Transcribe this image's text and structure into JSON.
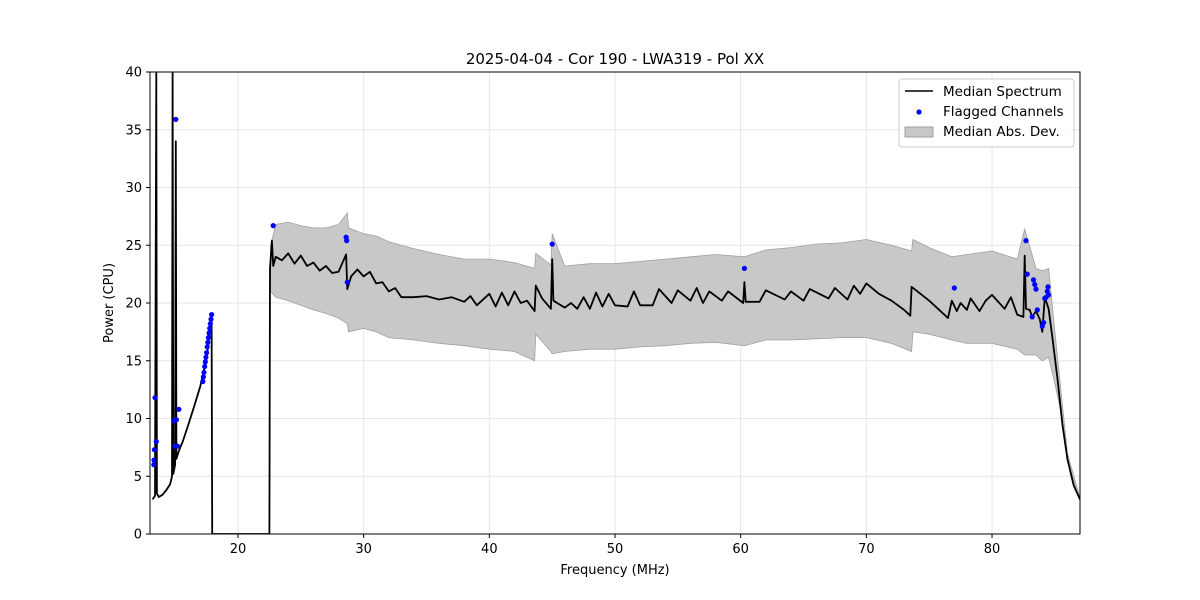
{
  "chart_data": {
    "type": "line",
    "title": "2025-04-04 - Cor 190 - LWA319 - Pol XX",
    "xlabel": "Frequency (MHz)",
    "ylabel": "Power (CPU)",
    "xlim": [
      13,
      87
    ],
    "ylim": [
      0,
      40
    ],
    "xticks": [
      20,
      30,
      40,
      50,
      60,
      70,
      80
    ],
    "yticks": [
      0,
      5,
      10,
      15,
      20,
      25,
      30,
      35,
      40
    ],
    "grid": true,
    "legend_position": "top-right",
    "colors": {
      "median": "#000000",
      "flagged": "#0000ff",
      "band": "#c8c8c8",
      "band_edge": "#a0a0a0"
    },
    "series": [
      {
        "name": "Median Spectrum",
        "kind": "line",
        "points": [
          [
            13.2,
            3.0
          ],
          [
            13.4,
            3.3
          ],
          [
            13.5,
            40.0
          ],
          [
            13.55,
            3.5
          ],
          [
            13.7,
            3.2
          ],
          [
            14.0,
            3.4
          ],
          [
            14.3,
            3.8
          ],
          [
            14.6,
            4.3
          ],
          [
            14.75,
            5.0
          ],
          [
            14.8,
            40.0
          ],
          [
            14.85,
            5.2
          ],
          [
            15.0,
            6.0
          ],
          [
            15.05,
            34.0
          ],
          [
            15.1,
            6.5
          ],
          [
            15.3,
            7.2
          ],
          [
            15.6,
            8.0
          ],
          [
            16.0,
            9.3
          ],
          [
            16.5,
            11.0
          ],
          [
            17.0,
            12.8
          ],
          [
            17.5,
            15.2
          ],
          [
            17.9,
            18.7
          ],
          [
            17.95,
            0.0
          ],
          [
            22.5,
            0.0
          ],
          [
            22.55,
            23.0
          ],
          [
            22.7,
            25.4
          ],
          [
            22.8,
            23.2
          ],
          [
            23.0,
            24.0
          ],
          [
            23.5,
            23.7
          ],
          [
            24.0,
            24.3
          ],
          [
            24.5,
            23.4
          ],
          [
            25.0,
            24.1
          ],
          [
            25.5,
            23.2
          ],
          [
            26.0,
            23.5
          ],
          [
            26.5,
            22.8
          ],
          [
            27.0,
            23.2
          ],
          [
            27.5,
            22.6
          ],
          [
            28.0,
            22.7
          ],
          [
            28.6,
            24.2
          ],
          [
            28.7,
            21.2
          ],
          [
            29.0,
            22.3
          ],
          [
            29.5,
            22.9
          ],
          [
            30.0,
            22.3
          ],
          [
            30.5,
            22.7
          ],
          [
            31.0,
            21.7
          ],
          [
            31.5,
            21.8
          ],
          [
            32.0,
            21.0
          ],
          [
            32.5,
            21.3
          ],
          [
            33.0,
            20.5
          ],
          [
            34.0,
            20.5
          ],
          [
            35.0,
            20.6
          ],
          [
            36.0,
            20.3
          ],
          [
            37.0,
            20.5
          ],
          [
            38.0,
            20.1
          ],
          [
            38.5,
            20.6
          ],
          [
            39.0,
            19.8
          ],
          [
            40.0,
            20.8
          ],
          [
            40.5,
            19.7
          ],
          [
            41.0,
            20.9
          ],
          [
            41.5,
            19.8
          ],
          [
            42.0,
            21.0
          ],
          [
            42.5,
            20.0
          ],
          [
            43.0,
            20.2
          ],
          [
            43.6,
            19.3
          ],
          [
            43.7,
            21.5
          ],
          [
            44.2,
            20.4
          ],
          [
            44.9,
            19.5
          ],
          [
            45.0,
            23.8
          ],
          [
            45.1,
            20.2
          ],
          [
            46.0,
            19.6
          ],
          [
            46.5,
            20.0
          ],
          [
            47.0,
            19.5
          ],
          [
            47.5,
            20.5
          ],
          [
            48.0,
            19.5
          ],
          [
            48.5,
            20.9
          ],
          [
            49.0,
            19.7
          ],
          [
            49.5,
            20.8
          ],
          [
            50.0,
            19.8
          ],
          [
            51.0,
            19.7
          ],
          [
            51.5,
            21.0
          ],
          [
            52.0,
            19.8
          ],
          [
            53.0,
            19.8
          ],
          [
            53.5,
            21.2
          ],
          [
            54.5,
            20.0
          ],
          [
            55.0,
            21.1
          ],
          [
            56.0,
            20.2
          ],
          [
            56.5,
            21.3
          ],
          [
            57.0,
            20.0
          ],
          [
            57.5,
            21.0
          ],
          [
            58.5,
            20.2
          ],
          [
            59.0,
            21.0
          ],
          [
            60.2,
            20.0
          ],
          [
            60.3,
            21.8
          ],
          [
            60.4,
            20.1
          ],
          [
            61.5,
            20.1
          ],
          [
            62.0,
            21.1
          ],
          [
            63.5,
            20.3
          ],
          [
            64.0,
            21.0
          ],
          [
            65.0,
            20.2
          ],
          [
            65.5,
            21.2
          ],
          [
            67.0,
            20.4
          ],
          [
            67.5,
            21.3
          ],
          [
            68.5,
            20.3
          ],
          [
            69.0,
            21.5
          ],
          [
            69.5,
            20.8
          ],
          [
            70.0,
            21.7
          ],
          [
            71.0,
            20.8
          ],
          [
            72.0,
            20.2
          ],
          [
            73.0,
            19.4
          ],
          [
            73.5,
            18.9
          ],
          [
            73.6,
            21.4
          ],
          [
            75.0,
            20.2
          ],
          [
            76.5,
            18.7
          ],
          [
            76.8,
            20.2
          ],
          [
            77.2,
            19.3
          ],
          [
            77.5,
            20.0
          ],
          [
            78.0,
            19.4
          ],
          [
            78.3,
            20.4
          ],
          [
            79.0,
            19.3
          ],
          [
            79.5,
            20.2
          ],
          [
            80.0,
            20.7
          ],
          [
            81.0,
            19.5
          ],
          [
            81.5,
            20.5
          ],
          [
            82.0,
            19.0
          ],
          [
            82.5,
            18.8
          ],
          [
            82.6,
            24.1
          ],
          [
            82.7,
            19.5
          ],
          [
            83.0,
            19.4
          ],
          [
            83.2,
            18.8
          ],
          [
            83.5,
            19.3
          ],
          [
            83.8,
            18.6
          ],
          [
            84.0,
            17.5
          ],
          [
            84.2,
            20.5
          ],
          [
            84.5,
            19.5
          ],
          [
            84.8,
            17.0
          ],
          [
            85.2,
            13.5
          ],
          [
            85.6,
            9.5
          ],
          [
            86.0,
            6.5
          ],
          [
            86.5,
            4.2
          ],
          [
            87.0,
            3.0
          ]
        ]
      },
      {
        "name": "Flagged Channels",
        "kind": "scatter",
        "points": [
          [
            13.3,
            6.0
          ],
          [
            13.32,
            6.4
          ],
          [
            13.35,
            7.3
          ],
          [
            13.4,
            11.8
          ],
          [
            13.5,
            8.0
          ],
          [
            14.9,
            9.8
          ],
          [
            15.0,
            7.6
          ],
          [
            15.05,
            35.9
          ],
          [
            15.1,
            9.9
          ],
          [
            15.2,
            7.6
          ],
          [
            15.3,
            10.8
          ],
          [
            17.2,
            13.2
          ],
          [
            17.25,
            13.6
          ],
          [
            17.3,
            14.0
          ],
          [
            17.35,
            14.5
          ],
          [
            17.4,
            14.9
          ],
          [
            17.45,
            15.3
          ],
          [
            17.5,
            15.7
          ],
          [
            17.55,
            16.2
          ],
          [
            17.6,
            16.6
          ],
          [
            17.65,
            17.0
          ],
          [
            17.7,
            17.4
          ],
          [
            17.75,
            17.8
          ],
          [
            17.8,
            18.2
          ],
          [
            17.85,
            18.6
          ],
          [
            17.9,
            19.0
          ],
          [
            22.8,
            26.7
          ],
          [
            28.6,
            25.7
          ],
          [
            28.65,
            25.4
          ],
          [
            28.7,
            21.8
          ],
          [
            45.0,
            25.1
          ],
          [
            60.3,
            23.0
          ],
          [
            77.0,
            21.3
          ],
          [
            82.7,
            25.4
          ],
          [
            82.8,
            22.5
          ],
          [
            83.2,
            18.8
          ],
          [
            83.3,
            22.0
          ],
          [
            83.4,
            21.6
          ],
          [
            83.5,
            21.2
          ],
          [
            83.6,
            19.4
          ],
          [
            84.0,
            18.0
          ],
          [
            84.1,
            18.3
          ],
          [
            84.2,
            20.4
          ],
          [
            84.3,
            20.5
          ],
          [
            84.4,
            21.0
          ],
          [
            84.45,
            21.4
          ],
          [
            84.5,
            20.7
          ]
        ]
      },
      {
        "name": "Median Abs. Dev.",
        "kind": "band",
        "points": [
          [
            22.6,
            21.0,
            25.0
          ],
          [
            23.0,
            20.5,
            26.8
          ],
          [
            24.0,
            20.2,
            27.0
          ],
          [
            25.0,
            19.8,
            26.7
          ],
          [
            26.0,
            19.4,
            26.5
          ],
          [
            27.0,
            19.1,
            26.5
          ],
          [
            28.0,
            18.7,
            26.8
          ],
          [
            28.7,
            18.2,
            27.8
          ],
          [
            28.8,
            17.5,
            26.5
          ],
          [
            30.0,
            17.8,
            26.0
          ],
          [
            31.0,
            17.5,
            25.8
          ],
          [
            32.0,
            17.0,
            25.3
          ],
          [
            34.0,
            16.8,
            24.7
          ],
          [
            36.0,
            16.5,
            24.2
          ],
          [
            38.0,
            16.3,
            23.8
          ],
          [
            40.0,
            16.0,
            23.8
          ],
          [
            42.0,
            15.8,
            23.5
          ],
          [
            43.6,
            15.0,
            23.0
          ],
          [
            43.7,
            17.3,
            24.3
          ],
          [
            44.9,
            15.8,
            23.3
          ],
          [
            45.0,
            15.6,
            26.0
          ],
          [
            46.0,
            15.8,
            23.2
          ],
          [
            48.0,
            16.0,
            23.4
          ],
          [
            50.0,
            16.0,
            23.4
          ],
          [
            52.0,
            16.2,
            23.6
          ],
          [
            54.0,
            16.3,
            23.8
          ],
          [
            56.0,
            16.5,
            24.0
          ],
          [
            58.0,
            16.6,
            24.2
          ],
          [
            60.3,
            16.3,
            24.0
          ],
          [
            62.0,
            16.8,
            24.6
          ],
          [
            64.0,
            16.8,
            24.8
          ],
          [
            66.0,
            16.9,
            25.1
          ],
          [
            68.0,
            17.0,
            25.2
          ],
          [
            70.0,
            17.0,
            25.5
          ],
          [
            72.0,
            16.5,
            25.0
          ],
          [
            73.6,
            15.8,
            24.5
          ],
          [
            73.7,
            17.5,
            25.5
          ],
          [
            75.0,
            17.3,
            24.8
          ],
          [
            76.8,
            16.8,
            24.0
          ],
          [
            78.0,
            16.5,
            24.2
          ],
          [
            80.0,
            16.5,
            24.5
          ],
          [
            82.0,
            16.0,
            23.8
          ],
          [
            82.6,
            15.5,
            26.4
          ],
          [
            83.5,
            15.5,
            23.0
          ],
          [
            84.0,
            15.0,
            22.8
          ],
          [
            84.5,
            15.3,
            23.0
          ],
          [
            85.0,
            13.0,
            17.5
          ],
          [
            85.5,
            10.5,
            12.3
          ],
          [
            86.0,
            6.3,
            7.0
          ],
          [
            87.0,
            2.9,
            3.1
          ]
        ]
      }
    ]
  }
}
